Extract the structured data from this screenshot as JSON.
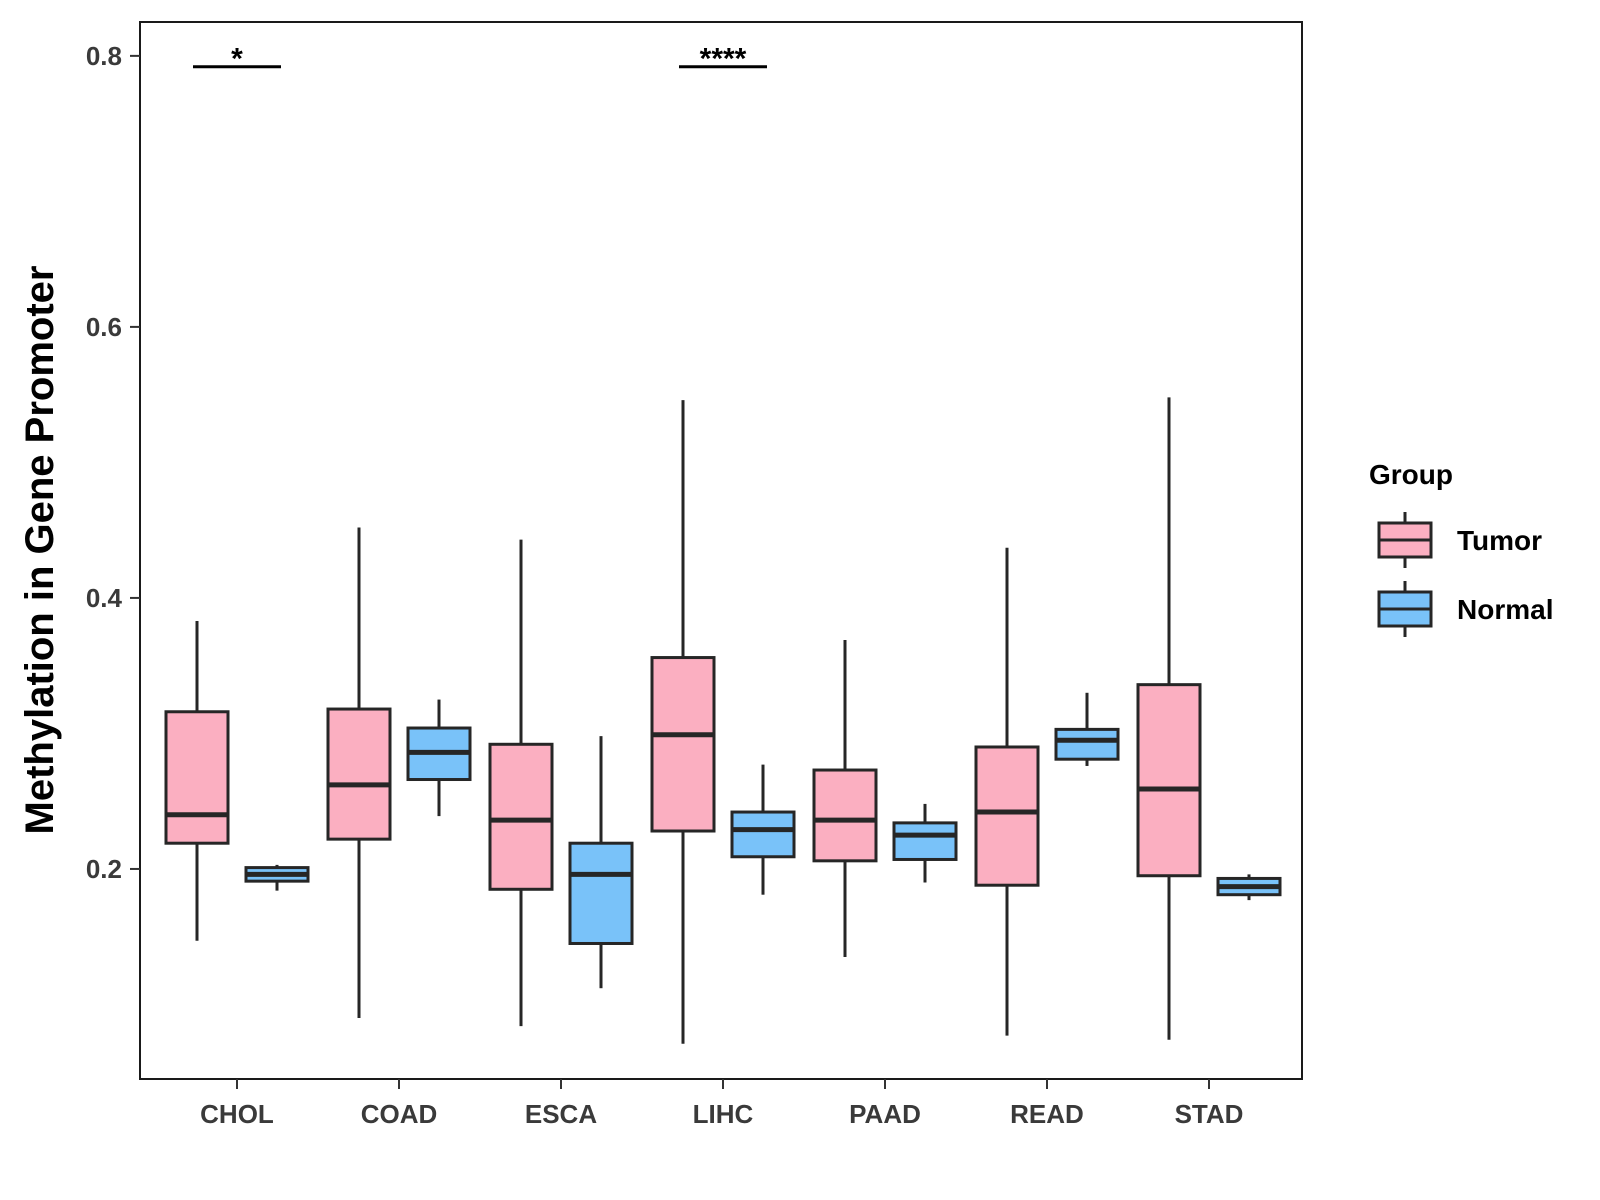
{
  "chart_data": {
    "type": "boxplot",
    "title": "",
    "xlabel": "",
    "ylabel": "Methylation in Gene Promoter",
    "ylim": [
      0.045,
      0.825
    ],
    "yticks": [
      0.2,
      0.4,
      0.6,
      0.8
    ],
    "ytick_labels": [
      "0.2",
      "0.4",
      "0.6",
      "0.8"
    ],
    "categories": [
      "CHOL",
      "COAD",
      "ESCA",
      "LIHC",
      "PAAD",
      "READ",
      "STAD"
    ],
    "legend": {
      "title": "Group",
      "position": "right",
      "entries": [
        {
          "name": "Tumor",
          "color": "#FBAFC1"
        },
        {
          "name": "Normal",
          "color": "#79C2F9"
        }
      ]
    },
    "series": [
      {
        "name": "Tumor",
        "color": "#FBAFC1",
        "boxes": [
          {
            "min": 0.147,
            "q1": 0.219,
            "median": 0.24,
            "q3": 0.316,
            "max": 0.383
          },
          {
            "min": 0.09,
            "q1": 0.222,
            "median": 0.262,
            "q3": 0.318,
            "max": 0.452
          },
          {
            "min": 0.084,
            "q1": 0.185,
            "median": 0.236,
            "q3": 0.292,
            "max": 0.443
          },
          {
            "min": 0.071,
            "q1": 0.228,
            "median": 0.299,
            "q3": 0.356,
            "max": 0.546
          },
          {
            "min": 0.135,
            "q1": 0.206,
            "median": 0.236,
            "q3": 0.273,
            "max": 0.369
          },
          {
            "min": 0.077,
            "q1": 0.188,
            "median": 0.242,
            "q3": 0.29,
            "max": 0.437
          },
          {
            "min": 0.074,
            "q1": 0.195,
            "median": 0.259,
            "q3": 0.336,
            "max": 0.548
          }
        ]
      },
      {
        "name": "Normal",
        "color": "#79C2F9",
        "boxes": [
          {
            "min": 0.184,
            "q1": 0.191,
            "median": 0.196,
            "q3": 0.201,
            "max": 0.203
          },
          {
            "min": 0.239,
            "q1": 0.266,
            "median": 0.286,
            "q3": 0.304,
            "max": 0.325
          },
          {
            "min": 0.112,
            "q1": 0.145,
            "median": 0.196,
            "q3": 0.219,
            "max": 0.298
          },
          {
            "min": 0.181,
            "q1": 0.209,
            "median": 0.229,
            "q3": 0.242,
            "max": 0.277
          },
          {
            "min": 0.19,
            "q1": 0.207,
            "median": 0.225,
            "q3": 0.234,
            "max": 0.248
          },
          {
            "min": 0.276,
            "q1": 0.281,
            "median": 0.295,
            "q3": 0.303,
            "max": 0.33
          },
          {
            "min": 0.177,
            "q1": 0.181,
            "median": 0.187,
            "q3": 0.193,
            "max": 0.196
          }
        ]
      }
    ],
    "annotations": [
      {
        "category": "CHOL",
        "label": "*",
        "y": 0.792
      },
      {
        "category": "LIHC",
        "label": "****",
        "y": 0.792
      }
    ]
  }
}
